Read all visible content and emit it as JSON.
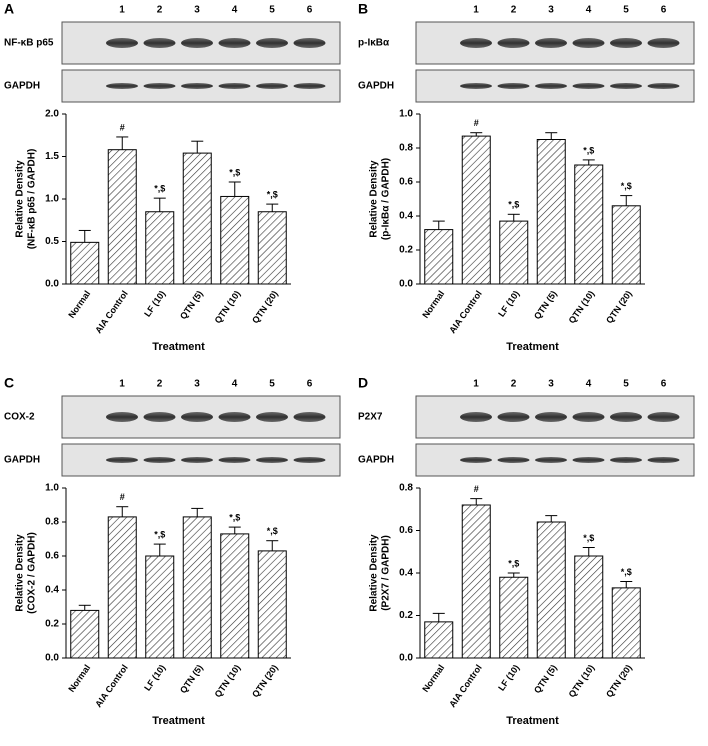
{
  "chart_data": [
    {
      "type": "bar",
      "panel": "A",
      "lanes": [
        "1",
        "2",
        "3",
        "4",
        "5",
        "6"
      ],
      "blot_labels": [
        "NF-κB p65",
        "GAPDH"
      ],
      "y_label": [
        "Relative Density",
        "(NF-κB p65 / GAPDH)"
      ],
      "x_label": "Treatment",
      "categories": [
        "Normal",
        "AIA Control",
        "LF (10)",
        "QTN (5)",
        "QTN (10)",
        "QTN (20)"
      ],
      "values": [
        0.49,
        1.58,
        0.85,
        1.54,
        1.03,
        0.85
      ],
      "errors": [
        0.14,
        0.15,
        0.16,
        0.14,
        0.17,
        0.09
      ],
      "annotations": [
        null,
        "#",
        "*,$",
        null,
        "*,$",
        "*,$"
      ],
      "ylim": [
        0,
        2
      ],
      "yticks": [
        {
          "value": 0,
          "label": "0.0"
        },
        {
          "value": 0.5,
          "label": "0.5"
        },
        {
          "value": 1,
          "label": "1.0"
        },
        {
          "value": 1.5,
          "label": "1.5"
        },
        {
          "value": 2,
          "label": "2.0"
        }
      ],
      "color": "#000000"
    },
    {
      "type": "bar",
      "panel": "B",
      "lanes": [
        "1",
        "2",
        "3",
        "4",
        "5",
        "6"
      ],
      "blot_labels": [
        "p-IκBα",
        "GAPDH"
      ],
      "y_label": [
        "Relative Density",
        "(p-IκBα / GAPDH)"
      ],
      "x_label": "Treatment",
      "categories": [
        "Normal",
        "AIA Control",
        "LF (10)",
        "QTN (5)",
        "QTN (10)",
        "QTN (20)"
      ],
      "values": [
        0.32,
        0.87,
        0.37,
        0.85,
        0.7,
        0.46
      ],
      "errors": [
        0.05,
        0.02,
        0.04,
        0.04,
        0.03,
        0.06
      ],
      "annotations": [
        null,
        "#",
        "*,$",
        null,
        "*,$",
        "*,$"
      ],
      "ylim": [
        0,
        1
      ],
      "yticks": [
        {
          "value": 0,
          "label": "0.0"
        },
        0.2,
        0.4,
        0.6,
        0.8,
        {
          "value": 1,
          "label": "1.0"
        }
      ],
      "color": "#000000"
    },
    {
      "type": "bar",
      "panel": "C",
      "lanes": [
        "1",
        "2",
        "3",
        "4",
        "5",
        "6"
      ],
      "blot_labels": [
        "COX-2",
        "GAPDH"
      ],
      "y_label": [
        "Relative Density",
        "(COX-2 / GAPDH)"
      ],
      "x_label": "Treatment",
      "categories": [
        "Normal",
        "AIA Control",
        "LF (10)",
        "QTN (5)",
        "QTN (10)",
        "QTN (20)"
      ],
      "values": [
        0.28,
        0.83,
        0.6,
        0.83,
        0.73,
        0.63
      ],
      "errors": [
        0.03,
        0.06,
        0.07,
        0.05,
        0.04,
        0.06
      ],
      "annotations": [
        null,
        "#",
        "*,$",
        null,
        "*,$",
        "*,$"
      ],
      "ylim": [
        0,
        1
      ],
      "yticks": [
        {
          "value": 0,
          "label": "0.0"
        },
        0.2,
        0.4,
        0.6,
        0.8,
        {
          "value": 1,
          "label": "1.0"
        }
      ],
      "color": "#000000"
    },
    {
      "type": "bar",
      "panel": "D",
      "lanes": [
        "1",
        "2",
        "3",
        "4",
        "5",
        "6"
      ],
      "blot_labels": [
        "P2X7",
        "GAPDH"
      ],
      "y_label": [
        "Relative Density",
        "(P2X7 / GAPDH)"
      ],
      "x_label": "Treatment",
      "categories": [
        "Normal",
        "AIA Control",
        "LF (10)",
        "QTN (5)",
        "QTN (10)",
        "QTN (20)"
      ],
      "values": [
        0.17,
        0.72,
        0.38,
        0.64,
        0.48,
        0.33
      ],
      "errors": [
        0.04,
        0.03,
        0.02,
        0.03,
        0.04,
        0.03
      ],
      "annotations": [
        null,
        "#",
        "*,$",
        null,
        "*,$",
        "*,$"
      ],
      "ylim": [
        0,
        0.8
      ],
      "yticks": [
        {
          "value": 0,
          "label": "0.0"
        },
        0.2,
        0.4,
        0.6,
        0.8
      ],
      "color": "#000000"
    }
  ]
}
